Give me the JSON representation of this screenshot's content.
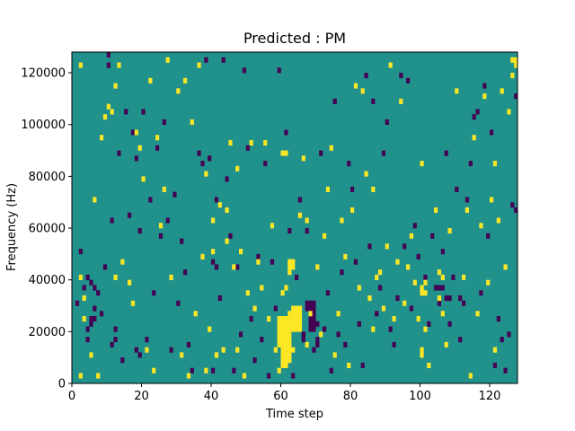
{
  "chart_data": {
    "type": "heatmap",
    "title": "Predicted : PM",
    "xlabel": "Time step",
    "ylabel": "Frequency (Hz)",
    "xlim": [
      0,
      128
    ],
    "ylim": [
      0,
      128000
    ],
    "xticks": [
      0,
      20,
      40,
      60,
      80,
      100,
      120
    ],
    "yticks": [
      0,
      20000,
      40000,
      60000,
      80000,
      100000,
      120000
    ],
    "ytick_labels": [
      "0",
      "20000",
      "40000",
      "60000",
      "80000",
      "100000",
      "120000"
    ],
    "grid": false,
    "legend": "none",
    "colormap": "viridis",
    "background_value": 0,
    "colors": {
      "background": "#21918c",
      "high": "#fde725",
      "low": "#440154"
    },
    "cell_size_hz": 2000,
    "yellow_cells": [
      [
        2,
        122000
      ],
      [
        2,
        40000
      ],
      [
        2,
        2000
      ],
      [
        3,
        32000
      ],
      [
        3,
        24000
      ],
      [
        5,
        10000
      ],
      [
        6,
        70000
      ],
      [
        7,
        2000
      ],
      [
        8,
        94000
      ],
      [
        9,
        102000
      ],
      [
        10,
        106000
      ],
      [
        11,
        104000
      ],
      [
        12,
        114000
      ],
      [
        12,
        40000
      ],
      [
        13,
        122000
      ],
      [
        14,
        46000
      ],
      [
        16,
        38000
      ],
      [
        17,
        30000
      ],
      [
        18,
        96000
      ],
      [
        19,
        90000
      ],
      [
        20,
        78000
      ],
      [
        21,
        12000
      ],
      [
        22,
        116000
      ],
      [
        23,
        4000
      ],
      [
        24,
        94000
      ],
      [
        25,
        60000
      ],
      [
        26,
        74000
      ],
      [
        27,
        124000
      ],
      [
        28,
        40000
      ],
      [
        30,
        112000
      ],
      [
        31,
        10000
      ],
      [
        32,
        116000
      ],
      [
        33,
        2000
      ],
      [
        34,
        100000
      ],
      [
        35,
        26000
      ],
      [
        36,
        122000
      ],
      [
        37,
        48000
      ],
      [
        38,
        80000
      ],
      [
        38,
        4000
      ],
      [
        39,
        20000
      ],
      [
        40,
        62000
      ],
      [
        40,
        50000
      ],
      [
        41,
        10000
      ],
      [
        42,
        68000
      ],
      [
        43,
        12000
      ],
      [
        44,
        66000
      ],
      [
        44,
        54000
      ],
      [
        45,
        92000
      ],
      [
        46,
        44000
      ],
      [
        47,
        12000
      ],
      [
        47,
        82000
      ],
      [
        48,
        50000
      ],
      [
        49,
        2000
      ],
      [
        50,
        34000
      ],
      [
        51,
        92000
      ],
      [
        52,
        28000
      ],
      [
        53,
        46000
      ],
      [
        54,
        36000
      ],
      [
        55,
        92000
      ],
      [
        56,
        24000
      ],
      [
        57,
        60000
      ],
      [
        58,
        12000
      ],
      [
        59,
        4000
      ],
      [
        60,
        34000
      ],
      [
        61,
        36000
      ],
      [
        62,
        46000
      ],
      [
        63,
        12000
      ],
      [
        65,
        64000
      ],
      [
        66,
        86000
      ],
      [
        67,
        14000
      ],
      [
        67,
        62000
      ],
      [
        68,
        26000
      ],
      [
        70,
        44000
      ],
      [
        71,
        18000
      ],
      [
        72,
        56000
      ],
      [
        73,
        74000
      ],
      [
        74,
        90000
      ],
      [
        75,
        10000
      ],
      [
        76,
        26000
      ],
      [
        77,
        62000
      ],
      [
        78,
        48000
      ],
      [
        79,
        6000
      ],
      [
        80,
        66000
      ],
      [
        81,
        114000
      ],
      [
        82,
        36000
      ],
      [
        83,
        112000
      ],
      [
        84,
        80000
      ],
      [
        85,
        32000
      ],
      [
        86,
        20000
      ],
      [
        86,
        74000
      ],
      [
        87,
        40000
      ],
      [
        88,
        42000
      ],
      [
        89,
        28000
      ],
      [
        90,
        52000
      ],
      [
        91,
        122000
      ],
      [
        92,
        24000
      ],
      [
        93,
        46000
      ],
      [
        94,
        108000
      ],
      [
        95,
        30000
      ],
      [
        96,
        44000
      ],
      [
        97,
        56000
      ],
      [
        98,
        38000
      ],
      [
        99,
        24000
      ],
      [
        100,
        84000
      ],
      [
        101,
        20000
      ],
      [
        102,
        6000
      ],
      [
        104,
        66000
      ],
      [
        105,
        32000
      ],
      [
        106,
        26000
      ],
      [
        107,
        14000
      ],
      [
        108,
        58000
      ],
      [
        110,
        112000
      ],
      [
        112,
        40000
      ],
      [
        113,
        66000
      ],
      [
        114,
        2000
      ],
      [
        115,
        94000
      ],
      [
        116,
        26000
      ],
      [
        117,
        60000
      ],
      [
        118,
        110000
      ],
      [
        119,
        38000
      ],
      [
        120,
        70000
      ],
      [
        121,
        84000
      ],
      [
        121,
        12000
      ],
      [
        122,
        62000
      ],
      [
        123,
        112000
      ],
      [
        124,
        44000
      ],
      [
        125,
        104000
      ],
      [
        126,
        118000
      ],
      [
        127,
        122000
      ],
      [
        60,
        88000
      ],
      [
        61,
        88000
      ],
      [
        59,
        14000
      ],
      [
        59,
        16000
      ],
      [
        59,
        18000
      ],
      [
        59,
        20000
      ],
      [
        59,
        22000
      ],
      [
        59,
        24000
      ],
      [
        60,
        6000
      ],
      [
        60,
        8000
      ],
      [
        60,
        10000
      ],
      [
        60,
        12000
      ],
      [
        60,
        14000
      ],
      [
        60,
        16000
      ],
      [
        60,
        18000
      ],
      [
        60,
        20000
      ],
      [
        60,
        22000
      ],
      [
        60,
        24000
      ],
      [
        61,
        6000
      ],
      [
        61,
        8000
      ],
      [
        61,
        10000
      ],
      [
        61,
        12000
      ],
      [
        61,
        14000
      ],
      [
        61,
        16000
      ],
      [
        61,
        18000
      ],
      [
        61,
        20000
      ],
      [
        61,
        22000
      ],
      [
        61,
        24000
      ],
      [
        62,
        8000
      ],
      [
        62,
        10000
      ],
      [
        62,
        12000
      ],
      [
        62,
        14000
      ],
      [
        62,
        16000
      ],
      [
        62,
        18000
      ],
      [
        62,
        20000
      ],
      [
        62,
        22000
      ],
      [
        62,
        24000
      ],
      [
        62,
        26000
      ],
      [
        63,
        20000
      ],
      [
        63,
        22000
      ],
      [
        63,
        24000
      ],
      [
        63,
        26000
      ],
      [
        63,
        28000
      ],
      [
        64,
        20000
      ],
      [
        64,
        22000
      ],
      [
        64,
        24000
      ],
      [
        64,
        26000
      ],
      [
        64,
        28000
      ],
      [
        65,
        20000
      ],
      [
        65,
        22000
      ],
      [
        65,
        24000
      ],
      [
        65,
        26000
      ],
      [
        65,
        28000
      ],
      [
        62,
        42000
      ],
      [
        62,
        44000
      ],
      [
        63,
        44000
      ],
      [
        63,
        46000
      ],
      [
        100,
        34000
      ],
      [
        100,
        36000
      ],
      [
        101,
        34000
      ],
      [
        101,
        38000
      ],
      [
        100,
        10000
      ],
      [
        100,
        12000
      ],
      [
        105,
        42000
      ],
      [
        106,
        40000
      ],
      [
        127,
        124000
      ],
      [
        126,
        124000
      ]
    ],
    "purple_cells": [
      [
        1,
        30000
      ],
      [
        2,
        50000
      ],
      [
        3,
        36000
      ],
      [
        4,
        40000
      ],
      [
        5,
        38000
      ],
      [
        6,
        36000
      ],
      [
        7,
        34000
      ],
      [
        8,
        26000
      ],
      [
        9,
        44000
      ],
      [
        10,
        126000
      ],
      [
        10,
        122000
      ],
      [
        11,
        62000
      ],
      [
        12,
        20000
      ],
      [
        13,
        88000
      ],
      [
        14,
        8000
      ],
      [
        15,
        104000
      ],
      [
        16,
        64000
      ],
      [
        17,
        96000
      ],
      [
        18,
        86000
      ],
      [
        19,
        58000
      ],
      [
        20,
        104000
      ],
      [
        21,
        16000
      ],
      [
        22,
        70000
      ],
      [
        23,
        34000
      ],
      [
        24,
        90000
      ],
      [
        25,
        56000
      ],
      [
        26,
        100000
      ],
      [
        27,
        62000
      ],
      [
        28,
        12000
      ],
      [
        29,
        72000
      ],
      [
        30,
        30000
      ],
      [
        31,
        54000
      ],
      [
        32,
        42000
      ],
      [
        33,
        14000
      ],
      [
        34,
        4000
      ],
      [
        36,
        88000
      ],
      [
        37,
        84000
      ],
      [
        38,
        124000
      ],
      [
        39,
        86000
      ],
      [
        40,
        4000
      ],
      [
        41,
        70000
      ],
      [
        42,
        32000
      ],
      [
        43,
        124000
      ],
      [
        44,
        78000
      ],
      [
        45,
        56000
      ],
      [
        46,
        4000
      ],
      [
        47,
        44000
      ],
      [
        48,
        18000
      ],
      [
        49,
        120000
      ],
      [
        50,
        90000
      ],
      [
        51,
        24000
      ],
      [
        52,
        8000
      ],
      [
        53,
        48000
      ],
      [
        54,
        16000
      ],
      [
        55,
        84000
      ],
      [
        56,
        2000
      ],
      [
        57,
        46000
      ],
      [
        58,
        28000
      ],
      [
        59,
        120000
      ],
      [
        60,
        6000
      ],
      [
        61,
        96000
      ],
      [
        62,
        58000
      ],
      [
        63,
        2000
      ],
      [
        64,
        40000
      ],
      [
        65,
        70000
      ],
      [
        66,
        18000
      ],
      [
        67,
        58000
      ],
      [
        67,
        28000
      ],
      [
        68,
        30000
      ],
      [
        69,
        12000
      ],
      [
        70,
        22000
      ],
      [
        71,
        88000
      ],
      [
        72,
        20000
      ],
      [
        73,
        34000
      ],
      [
        74,
        4000
      ],
      [
        75,
        108000
      ],
      [
        76,
        18000
      ],
      [
        77,
        42000
      ],
      [
        78,
        14000
      ],
      [
        79,
        84000
      ],
      [
        80,
        74000
      ],
      [
        81,
        46000
      ],
      [
        82,
        22000
      ],
      [
        83,
        6000
      ],
      [
        84,
        118000
      ],
      [
        85,
        52000
      ],
      [
        86,
        108000
      ],
      [
        87,
        26000
      ],
      [
        88,
        36000
      ],
      [
        89,
        88000
      ],
      [
        90,
        100000
      ],
      [
        91,
        20000
      ],
      [
        92,
        14000
      ],
      [
        93,
        32000
      ],
      [
        94,
        118000
      ],
      [
        95,
        52000
      ],
      [
        96,
        116000
      ],
      [
        97,
        28000
      ],
      [
        98,
        60000
      ],
      [
        99,
        48000
      ],
      [
        100,
        10000
      ],
      [
        101,
        40000
      ],
      [
        102,
        22000
      ],
      [
        103,
        56000
      ],
      [
        104,
        36000
      ],
      [
        105,
        30000
      ],
      [
        106,
        50000
      ],
      [
        107,
        88000
      ],
      [
        108,
        22000
      ],
      [
        109,
        40000
      ],
      [
        110,
        74000
      ],
      [
        111,
        16000
      ],
      [
        112,
        30000
      ],
      [
        113,
        70000
      ],
      [
        114,
        84000
      ],
      [
        115,
        102000
      ],
      [
        116,
        104000
      ],
      [
        117,
        34000
      ],
      [
        118,
        114000
      ],
      [
        119,
        56000
      ],
      [
        120,
        96000
      ],
      [
        121,
        6000
      ],
      [
        122,
        24000
      ],
      [
        123,
        16000
      ],
      [
        124,
        4000
      ],
      [
        125,
        18000
      ],
      [
        126,
        68000
      ],
      [
        127,
        66000
      ],
      [
        127,
        110000
      ],
      [
        128,
        68000
      ],
      [
        68,
        20000
      ],
      [
        68,
        22000
      ],
      [
        68,
        24000
      ],
      [
        68,
        26000
      ],
      [
        68,
        28000
      ],
      [
        69,
        20000
      ],
      [
        69,
        22000
      ],
      [
        69,
        24000
      ],
      [
        69,
        26000
      ],
      [
        69,
        28000
      ],
      [
        66,
        16000
      ],
      [
        66,
        18000
      ],
      [
        70,
        14000
      ],
      [
        70,
        16000
      ],
      [
        67,
        30000
      ],
      [
        69,
        30000
      ],
      [
        104,
        36000
      ],
      [
        105,
        36000
      ],
      [
        106,
        36000
      ],
      [
        107,
        32000
      ],
      [
        108,
        32000
      ],
      [
        111,
        32000
      ],
      [
        4,
        20000
      ],
      [
        5,
        22000
      ],
      [
        6,
        24000
      ],
      [
        5,
        24000
      ],
      [
        4,
        16000
      ],
      [
        6,
        28000
      ],
      [
        11,
        14000
      ],
      [
        12,
        16000
      ],
      [
        18,
        12000
      ],
      [
        19,
        10000
      ],
      [
        40,
        46000
      ],
      [
        41,
        44000
      ]
    ]
  }
}
